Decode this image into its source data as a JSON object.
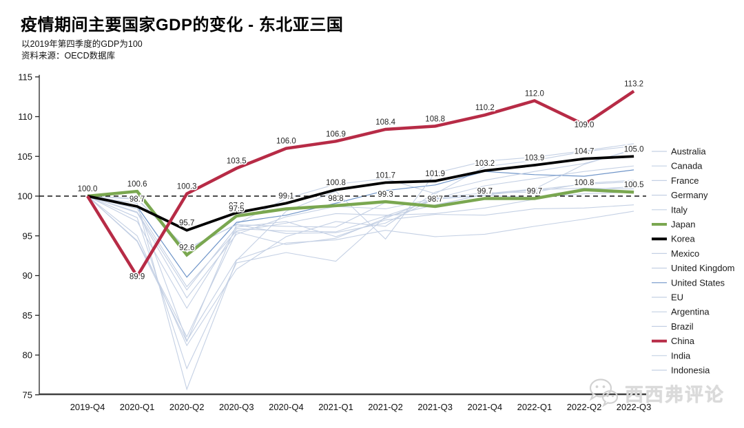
{
  "header": {
    "title": "疫情期间主要国家GDP的变化 - 东北亚三国",
    "subtitle": "以2019年第四季度的GDP为100",
    "source": "资料来源：OECD数据库"
  },
  "watermark": {
    "text": "西西弗评论"
  },
  "colors": {
    "china": "#b72b46",
    "japan": "#7aa750",
    "korea": "#000000",
    "united_states": "#6e94c8",
    "background_line": "#c4d0e4",
    "axis": "#3f3f3f",
    "label_text": "#262626"
  },
  "chart_data": {
    "type": "line",
    "title": "疫情期间主要国家GDP的变化 - 东北亚三国",
    "xlabel": "",
    "ylabel": "",
    "ylim": [
      75,
      115
    ],
    "yticks": [
      75,
      80,
      85,
      90,
      95,
      100,
      105,
      110,
      115
    ],
    "reference_line": 100,
    "grid": false,
    "legend_position": "right",
    "x_labels": [
      "2019-Q4",
      "2020-Q1",
      "2020-Q2",
      "2020-Q3",
      "2020-Q4",
      "2021-Q1",
      "2021-Q2",
      "2021-Q3",
      "2021-Q4",
      "2022-Q1",
      "2022-Q2",
      "2022-Q3"
    ],
    "series": [
      {
        "name": "Australia",
        "color": "#c4d0e4",
        "width": 1.1,
        "emphasis": false,
        "values": [
          100,
          99.7,
          93.2,
          96.5,
          99.7,
          101.5,
          102.2,
          100.3,
          103.7,
          104.5,
          105.6,
          106.3
        ],
        "labels": null
      },
      {
        "name": "Canada",
        "color": "#c4d0e4",
        "width": 1.1,
        "emphasis": false,
        "values": [
          100,
          97.9,
          87.2,
          95.2,
          97.4,
          98.7,
          98.4,
          99.7,
          101.3,
          102.2,
          103.1,
          103.8
        ],
        "labels": null
      },
      {
        "name": "France",
        "color": "#c4d0e4",
        "width": 1.1,
        "emphasis": false,
        "values": [
          100,
          94.3,
          81.7,
          96.4,
          95.3,
          95.4,
          96.6,
          99.7,
          100.1,
          99.8,
          100.3,
          100.5
        ],
        "labels": null
      },
      {
        "name": "Germany",
        "color": "#c4d0e4",
        "width": 1.1,
        "emphasis": false,
        "values": [
          100,
          98.0,
          88.2,
          96.1,
          96.8,
          94.9,
          97.0,
          97.7,
          97.6,
          98.4,
          98.5,
          98.9
        ],
        "labels": null
      },
      {
        "name": "Italy",
        "color": "#c4d0e4",
        "width": 1.1,
        "emphasis": false,
        "values": [
          100,
          94.4,
          82.3,
          95.5,
          93.9,
          94.7,
          97.2,
          99.8,
          100.4,
          100.5,
          101.6,
          102.0
        ],
        "labels": null
      },
      {
        "name": "Japan",
        "color": "#7aa750",
        "width": 4.5,
        "emphasis": true,
        "values": [
          100,
          100.6,
          92.6,
          97.5,
          98.4,
          98.8,
          99.3,
          98.7,
          99.7,
          99.7,
          100.8,
          100.5
        ],
        "labels": [
          null,
          "100.6",
          "92.6",
          "97.5",
          null,
          "98.8",
          "99.3",
          "98.7",
          "99.7",
          "99.7",
          "100.8",
          "100.5"
        ]
      },
      {
        "name": "Korea",
        "color": "#000000",
        "width": 3.8,
        "emphasis": true,
        "values": [
          100,
          98.7,
          95.7,
          97.9,
          99.1,
          100.8,
          101.7,
          101.9,
          103.2,
          103.9,
          104.7,
          105.0
        ],
        "labels": [
          null,
          "98.7",
          "95.7",
          "97.9",
          "99.1",
          "100.8",
          "101.7",
          "101.9",
          "103.2",
          "103.9",
          "104.7",
          "105.0"
        ]
      },
      {
        "name": "Mexico",
        "color": "#c4d0e4",
        "width": 1.1,
        "emphasis": false,
        "values": [
          100,
          98.8,
          81.8,
          92.0,
          94.1,
          94.5,
          95.7,
          94.9,
          95.2,
          96.2,
          97.1,
          98.1
        ],
        "labels": null
      },
      {
        "name": "United Kingdom",
        "color": "#c4d0e4",
        "width": 1.1,
        "emphasis": false,
        "values": [
          100,
          97.3,
          78.3,
          91.6,
          92.9,
          91.8,
          97.4,
          98.9,
          100.2,
          100.8,
          101.0,
          100.9
        ],
        "labels": null
      },
      {
        "name": "United States",
        "color": "#6e94c8",
        "width": 1.2,
        "emphasis": false,
        "values": [
          100,
          98.7,
          89.8,
          96.7,
          97.6,
          99.1,
          100.7,
          101.4,
          103.1,
          102.7,
          102.5,
          103.3
        ],
        "labels": null
      },
      {
        "name": "EU",
        "color": "#c4d0e4",
        "width": 1.1,
        "emphasis": false,
        "values": [
          100,
          96.8,
          85.9,
          95.9,
          95.6,
          95.5,
          97.5,
          99.6,
          100.1,
          100.8,
          101.5,
          101.8
        ],
        "labels": null
      },
      {
        "name": "Argentina",
        "color": "#c4d0e4",
        "width": 1.1,
        "emphasis": false,
        "values": [
          100,
          95.0,
          81.2,
          90.8,
          94.9,
          96.8,
          96.2,
          100.5,
          102.0,
          103.1,
          104.1,
          105.8
        ],
        "labels": null
      },
      {
        "name": "Brazil",
        "color": "#c4d0e4",
        "width": 1.1,
        "emphasis": false,
        "values": [
          100,
          98.4,
          88.6,
          95.6,
          96.6,
          97.8,
          97.6,
          97.8,
          98.5,
          99.6,
          100.8,
          101.2
        ],
        "labels": null
      },
      {
        "name": "China",
        "color": "#b72b46",
        "width": 4.5,
        "emphasis": true,
        "values": [
          100,
          89.9,
          100.3,
          103.5,
          106.0,
          106.9,
          108.4,
          108.8,
          110.2,
          112.0,
          109.0,
          113.2
        ],
        "labels": [
          "100.0",
          "89.9",
          "100.3",
          "103.5",
          "106.0",
          "106.9",
          "108.4",
          "108.8",
          "110.2",
          "112.0",
          "109.0",
          "113.2"
        ]
      },
      {
        "name": "India",
        "color": "#c4d0e4",
        "width": 1.1,
        "emphasis": false,
        "values": [
          100,
          99.1,
          75.7,
          91.9,
          98.1,
          100.6,
          94.6,
          102.9,
          104.4,
          104.9,
          105.7,
          106.6
        ],
        "labels": null
      },
      {
        "name": "Indonesia",
        "color": "#c4d0e4",
        "width": 1.1,
        "emphasis": false,
        "values": [
          100,
          99.6,
          93.4,
          96.4,
          96.2,
          96.1,
          99.2,
          98.8,
          100.3,
          100.9,
          104.0,
          105.9
        ],
        "labels": null
      }
    ]
  }
}
